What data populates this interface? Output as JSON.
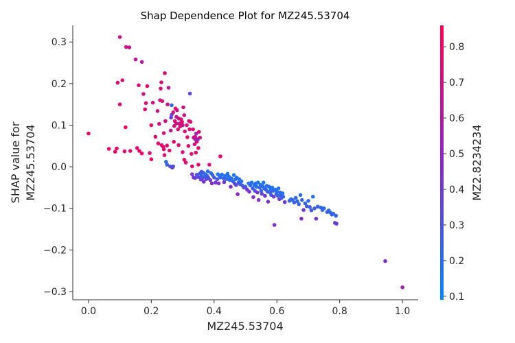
{
  "chart_data": {
    "type": "scatter",
    "title": "Shap Dependence Plot for MZ245.53704",
    "xlabel": "MZ245.53704",
    "ylabel_lines": [
      "SHAP value for",
      "MZ245.53704"
    ],
    "xlim": [
      -0.05,
      1.05
    ],
    "ylim": [
      -0.32,
      0.34
    ],
    "xticks": [
      0.0,
      0.2,
      0.4,
      0.6,
      0.8,
      1.0
    ],
    "xtick_labels": [
      "0.0",
      "0.2",
      "0.4",
      "0.6",
      "0.8",
      "1.0"
    ],
    "yticks": [
      -0.3,
      -0.2,
      -0.1,
      0.0,
      0.1,
      0.2,
      0.3
    ],
    "ytick_labels": [
      "−0.3",
      "−0.2",
      "−0.1",
      "0.0",
      "0.1",
      "0.2",
      "0.3"
    ],
    "colorbar": {
      "label": "MZ2.8234234",
      "range": [
        0.09,
        0.86
      ],
      "ticks": [
        0.1,
        0.2,
        0.3,
        0.4,
        0.5,
        0.6,
        0.7,
        0.8
      ],
      "tick_labels": [
        "0.1",
        "0.2",
        "0.3",
        "0.4",
        "0.5",
        "0.6",
        "0.7",
        "0.8"
      ],
      "low_color": "#008afb",
      "mid_color": "#8a26c9",
      "high_color": "#ff0052"
    },
    "points": [
      [
        0.0,
        0.08,
        0.8
      ],
      [
        0.065,
        0.043,
        0.78
      ],
      [
        0.085,
        0.036,
        0.79
      ],
      [
        0.09,
        0.044,
        0.8
      ],
      [
        0.093,
        0.202,
        0.74
      ],
      [
        0.1,
        0.312,
        0.7
      ],
      [
        0.1,
        0.15,
        0.73
      ],
      [
        0.108,
        0.208,
        0.77
      ],
      [
        0.115,
        0.037,
        0.76
      ],
      [
        0.118,
        0.095,
        0.8
      ],
      [
        0.12,
        0.288,
        0.72
      ],
      [
        0.13,
        0.287,
        0.68
      ],
      [
        0.133,
        0.038,
        0.78
      ],
      [
        0.15,
        0.258,
        0.66
      ],
      [
        0.155,
        0.045,
        0.79
      ],
      [
        0.16,
        0.196,
        0.72
      ],
      [
        0.162,
        0.038,
        0.77
      ],
      [
        0.17,
        0.032,
        0.8
      ],
      [
        0.17,
        0.252,
        0.6
      ],
      [
        0.175,
        0.175,
        0.7
      ],
      [
        0.18,
        0.138,
        0.78
      ],
      [
        0.183,
        0.153,
        0.74
      ],
      [
        0.187,
        0.194,
        0.8
      ],
      [
        0.195,
        0.033,
        0.75
      ],
      [
        0.2,
        0.1,
        0.79
      ],
      [
        0.2,
        0.018,
        0.82
      ],
      [
        0.205,
        0.154,
        0.71
      ],
      [
        0.213,
        0.072,
        0.76
      ],
      [
        0.22,
        0.134,
        0.68
      ],
      [
        0.222,
        0.056,
        0.8
      ],
      [
        0.225,
        0.103,
        0.72
      ],
      [
        0.228,
        0.16,
        0.74
      ],
      [
        0.23,
        0.188,
        0.75
      ],
      [
        0.232,
        0.203,
        0.7
      ],
      [
        0.233,
        0.052,
        0.78
      ],
      [
        0.235,
        0.158,
        0.7
      ],
      [
        0.238,
        0.048,
        0.79
      ],
      [
        0.24,
        0.081,
        0.73
      ],
      [
        0.24,
        0.042,
        0.77
      ],
      [
        0.242,
        0.028,
        0.76
      ],
      [
        0.243,
        0.225,
        0.72
      ],
      [
        0.245,
        0.11,
        0.74
      ],
      [
        0.247,
        0.012,
        0.22
      ],
      [
        0.25,
        0.005,
        0.25
      ],
      [
        0.25,
        0.051,
        0.75
      ],
      [
        0.252,
        0.15,
        0.7
      ],
      [
        0.255,
        0.19,
        0.65
      ],
      [
        0.258,
        0.039,
        0.74
      ],
      [
        0.26,
        0.001,
        0.3
      ],
      [
        0.262,
        0.087,
        0.65
      ],
      [
        0.263,
        0.118,
        0.4
      ],
      [
        0.265,
        0.125,
        0.36
      ],
      [
        0.265,
        0.148,
        0.2
      ],
      [
        0.267,
        -0.002,
        0.45
      ],
      [
        0.27,
        0.131,
        0.72
      ],
      [
        0.27,
        0.001,
        0.3
      ],
      [
        0.272,
        0.06,
        0.78
      ],
      [
        0.273,
        0.098,
        0.7
      ],
      [
        0.275,
        0.11,
        0.74
      ],
      [
        0.277,
        0.14,
        0.76
      ],
      [
        0.28,
        0.12,
        0.68
      ],
      [
        0.28,
        0.104,
        0.72
      ],
      [
        0.282,
        0.136,
        0.7
      ],
      [
        0.285,
        0.09,
        0.73
      ],
      [
        0.287,
        0.052,
        0.76
      ],
      [
        0.288,
        0.116,
        0.74
      ],
      [
        0.29,
        0.104,
        0.71
      ],
      [
        0.292,
        0.097,
        0.75
      ],
      [
        0.295,
        0.114,
        0.72
      ],
      [
        0.298,
        0.108,
        0.77
      ],
      [
        0.3,
        0.1,
        0.7
      ],
      [
        0.3,
        0.035,
        0.72
      ],
      [
        0.302,
        0.143,
        0.73
      ],
      [
        0.305,
        0.124,
        0.69
      ],
      [
        0.305,
        0.017,
        0.79
      ],
      [
        0.307,
        0.085,
        0.75
      ],
      [
        0.31,
        0.01,
        0.76
      ],
      [
        0.313,
        0.1,
        0.73
      ],
      [
        0.315,
        0.071,
        0.77
      ],
      [
        0.318,
        0.05,
        0.76
      ],
      [
        0.32,
        0.11,
        0.7
      ],
      [
        0.322,
        0.09,
        0.78
      ],
      [
        0.323,
        0.176,
        0.35
      ],
      [
        0.325,
        0.108,
        0.73
      ],
      [
        0.328,
        0.031,
        0.76
      ],
      [
        0.33,
        0.001,
        0.78
      ],
      [
        0.333,
        0.09,
        0.72
      ],
      [
        0.335,
        0.07,
        0.66
      ],
      [
        0.338,
        0.054,
        0.7
      ],
      [
        0.34,
        0.072,
        0.75
      ],
      [
        0.34,
        0.066,
        0.6
      ],
      [
        0.342,
        0.034,
        0.77
      ],
      [
        0.343,
        0.08,
        0.56
      ],
      [
        0.345,
        0.06,
        0.72
      ],
      [
        0.348,
        0.066,
        0.5
      ],
      [
        0.35,
        0.045,
        0.78
      ],
      [
        0.35,
        0.005,
        0.79
      ],
      [
        0.352,
        0.084,
        0.74
      ],
      [
        0.355,
        0.07,
        0.68
      ],
      [
        0.36,
        -0.012,
        0.25
      ],
      [
        0.33,
        -0.018,
        0.42
      ],
      [
        0.335,
        -0.026,
        0.45
      ],
      [
        0.34,
        -0.027,
        0.38
      ],
      [
        0.345,
        -0.019,
        0.3
      ],
      [
        0.35,
        -0.025,
        0.35
      ],
      [
        0.355,
        -0.016,
        0.28
      ],
      [
        0.358,
        -0.031,
        0.4
      ],
      [
        0.36,
        -0.022,
        0.22
      ],
      [
        0.362,
        -0.028,
        0.32
      ],
      [
        0.365,
        -0.014,
        0.3
      ],
      [
        0.367,
        -0.036,
        0.44
      ],
      [
        0.37,
        -0.024,
        0.26
      ],
      [
        0.372,
        -0.018,
        0.2
      ],
      [
        0.375,
        -0.03,
        0.34
      ],
      [
        0.378,
        -0.022,
        0.25
      ],
      [
        0.38,
        -0.011,
        0.18
      ],
      [
        0.382,
        -0.027,
        0.3
      ],
      [
        0.385,
        0.005,
        0.76
      ],
      [
        0.388,
        -0.032,
        0.4
      ],
      [
        0.39,
        -0.015,
        0.22
      ],
      [
        0.393,
        -0.04,
        0.45
      ],
      [
        0.395,
        -0.02,
        0.24
      ],
      [
        0.4,
        -0.026,
        0.28
      ],
      [
        0.405,
        -0.038,
        0.4
      ],
      [
        0.41,
        -0.03,
        0.3
      ],
      [
        0.412,
        -0.018,
        0.18
      ],
      [
        0.415,
        -0.04,
        0.46
      ],
      [
        0.418,
        -0.022,
        0.2
      ],
      [
        0.42,
        -0.026,
        0.22
      ],
      [
        0.42,
        0.025,
        0.78
      ],
      [
        0.425,
        -0.019,
        0.18
      ],
      [
        0.43,
        -0.028,
        0.24
      ],
      [
        0.432,
        -0.037,
        0.42
      ],
      [
        0.435,
        -0.022,
        0.21
      ],
      [
        0.44,
        -0.03,
        0.2
      ],
      [
        0.443,
        -0.017,
        0.17
      ],
      [
        0.447,
        -0.024,
        0.19
      ],
      [
        0.45,
        -0.032,
        0.22
      ],
      [
        0.453,
        -0.048,
        0.45
      ],
      [
        0.455,
        -0.028,
        0.2
      ],
      [
        0.46,
        -0.035,
        0.23
      ],
      [
        0.463,
        -0.02,
        0.18
      ],
      [
        0.465,
        -0.04,
        0.3
      ],
      [
        0.468,
        -0.03,
        0.21
      ],
      [
        0.47,
        -0.044,
        0.35
      ],
      [
        0.472,
        -0.026,
        0.17
      ],
      [
        0.475,
        -0.066,
        0.48
      ],
      [
        0.478,
        -0.038,
        0.22
      ],
      [
        0.48,
        -0.03,
        0.19
      ],
      [
        0.483,
        -0.042,
        0.28
      ],
      [
        0.487,
        -0.035,
        0.2
      ],
      [
        0.49,
        -0.045,
        0.24
      ],
      [
        0.495,
        -0.05,
        0.4
      ],
      [
        0.5,
        -0.048,
        0.26
      ],
      [
        0.505,
        -0.055,
        0.42
      ],
      [
        0.51,
        -0.04,
        0.2
      ],
      [
        0.512,
        -0.06,
        0.44
      ],
      [
        0.515,
        -0.045,
        0.22
      ],
      [
        0.52,
        -0.038,
        0.18
      ],
      [
        0.523,
        -0.052,
        0.25
      ],
      [
        0.525,
        -0.073,
        0.45
      ],
      [
        0.528,
        -0.044,
        0.2
      ],
      [
        0.53,
        -0.058,
        0.3
      ],
      [
        0.533,
        -0.04,
        0.17
      ],
      [
        0.535,
        -0.048,
        0.21
      ],
      [
        0.538,
        -0.062,
        0.4
      ],
      [
        0.54,
        -0.038,
        0.18
      ],
      [
        0.542,
        -0.08,
        0.46
      ],
      [
        0.545,
        -0.05,
        0.23
      ],
      [
        0.548,
        -0.044,
        0.19
      ],
      [
        0.55,
        -0.058,
        0.26
      ],
      [
        0.552,
        -0.065,
        0.35
      ],
      [
        0.555,
        -0.047,
        0.2
      ],
      [
        0.557,
        -0.038,
        0.16
      ],
      [
        0.56,
        -0.052,
        0.22
      ],
      [
        0.562,
        -0.07,
        0.42
      ],
      [
        0.565,
        -0.055,
        0.24
      ],
      [
        0.568,
        -0.046,
        0.19
      ],
      [
        0.57,
        -0.06,
        0.22
      ],
      [
        0.572,
        -0.084,
        0.44
      ],
      [
        0.575,
        -0.048,
        0.18
      ],
      [
        0.578,
        -0.062,
        0.25
      ],
      [
        0.58,
        -0.055,
        0.2
      ],
      [
        0.582,
        -0.068,
        0.3
      ],
      [
        0.585,
        -0.05,
        0.17
      ],
      [
        0.588,
        -0.058,
        0.22
      ],
      [
        0.59,
        -0.072,
        0.4
      ],
      [
        0.592,
        -0.14,
        0.45
      ],
      [
        0.595,
        -0.055,
        0.2
      ],
      [
        0.598,
        -0.065,
        0.26
      ],
      [
        0.6,
        -0.06,
        0.21
      ],
      [
        0.603,
        -0.07,
        0.23
      ],
      [
        0.605,
        -0.052,
        0.18
      ],
      [
        0.608,
        -0.078,
        0.42
      ],
      [
        0.61,
        -0.062,
        0.22
      ],
      [
        0.612,
        -0.068,
        0.24
      ],
      [
        0.615,
        -0.075,
        0.28
      ],
      [
        0.618,
        -0.064,
        0.2
      ],
      [
        0.62,
        -0.072,
        0.22
      ],
      [
        0.625,
        -0.085,
        0.4
      ],
      [
        0.64,
        -0.082,
        0.22
      ],
      [
        0.645,
        -0.078,
        0.2
      ],
      [
        0.65,
        -0.08,
        0.24
      ],
      [
        0.655,
        -0.086,
        0.26
      ],
      [
        0.66,
        -0.075,
        0.21
      ],
      [
        0.665,
        -0.083,
        0.22
      ],
      [
        0.67,
        -0.09,
        0.25
      ],
      [
        0.675,
        -0.068,
        0.2
      ],
      [
        0.678,
        -0.125,
        0.44
      ],
      [
        0.68,
        -0.08,
        0.22
      ],
      [
        0.685,
        -0.104,
        0.4
      ],
      [
        0.69,
        -0.088,
        0.24
      ],
      [
        0.695,
        -0.095,
        0.26
      ],
      [
        0.7,
        -0.082,
        0.2
      ],
      [
        0.705,
        -0.097,
        0.25
      ],
      [
        0.71,
        -0.105,
        0.28
      ],
      [
        0.715,
        -0.072,
        0.19
      ],
      [
        0.72,
        -0.1,
        0.26
      ],
      [
        0.725,
        -0.125,
        0.42
      ],
      [
        0.73,
        -0.096,
        0.24
      ],
      [
        0.74,
        -0.098,
        0.22
      ],
      [
        0.745,
        -0.104,
        0.25
      ],
      [
        0.75,
        -0.1,
        0.2
      ],
      [
        0.76,
        -0.109,
        0.26
      ],
      [
        0.765,
        -0.105,
        0.22
      ],
      [
        0.77,
        -0.11,
        0.24
      ],
      [
        0.775,
        -0.115,
        0.25
      ],
      [
        0.78,
        -0.113,
        0.22
      ],
      [
        0.785,
        -0.135,
        0.4
      ],
      [
        0.788,
        -0.118,
        0.23
      ],
      [
        0.79,
        -0.137,
        0.38
      ],
      [
        0.945,
        -0.227,
        0.46
      ],
      [
        1.0,
        -0.29,
        0.55
      ]
    ]
  }
}
